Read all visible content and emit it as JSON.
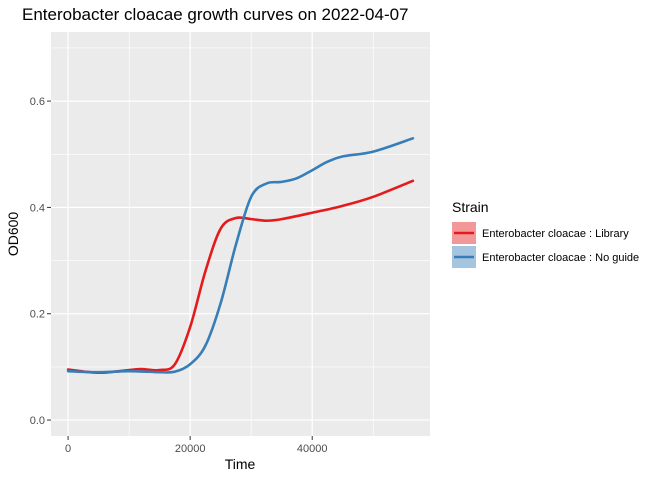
{
  "chart_data": {
    "type": "line",
    "title": "Enterobacter cloacae growth curves on 2022-04-07",
    "xlabel": "Time",
    "ylabel": "OD600",
    "xlim": [
      -2800,
      59300
    ],
    "ylim": [
      -0.03,
      0.73
    ],
    "x_ticks": [
      0,
      20000,
      40000
    ],
    "x_tick_labels": [
      "0",
      "20000",
      "40000"
    ],
    "y_ticks": [
      0.0,
      0.2,
      0.4,
      0.6
    ],
    "y_tick_labels": [
      "0.0",
      "0.2",
      "0.4",
      "0.6"
    ],
    "grid": true,
    "legend": {
      "title": "Strain",
      "placement": "right"
    },
    "series": [
      {
        "name": "Enterobacter cloacae : Library",
        "color": "#e41a1c",
        "points": [
          [
            0,
            0.095
          ],
          [
            5000,
            0.089
          ],
          [
            10000,
            0.094
          ],
          [
            12000,
            0.096
          ],
          [
            15000,
            0.094
          ],
          [
            17500,
            0.105
          ],
          [
            20000,
            0.175
          ],
          [
            22500,
            0.28
          ],
          [
            25000,
            0.36
          ],
          [
            27500,
            0.38
          ],
          [
            30000,
            0.378
          ],
          [
            32500,
            0.375
          ],
          [
            35000,
            0.378
          ],
          [
            40000,
            0.39
          ],
          [
            45000,
            0.403
          ],
          [
            50000,
            0.42
          ],
          [
            56500,
            0.45
          ]
        ]
      },
      {
        "name": "Enterobacter cloacae : No guide",
        "color": "#377eb8",
        "points": [
          [
            0,
            0.092
          ],
          [
            5000,
            0.09
          ],
          [
            10000,
            0.092
          ],
          [
            15000,
            0.09
          ],
          [
            17500,
            0.091
          ],
          [
            20000,
            0.105
          ],
          [
            22500,
            0.14
          ],
          [
            25000,
            0.22
          ],
          [
            27500,
            0.33
          ],
          [
            30000,
            0.42
          ],
          [
            32500,
            0.445
          ],
          [
            35000,
            0.448
          ],
          [
            37500,
            0.455
          ],
          [
            40000,
            0.47
          ],
          [
            42500,
            0.486
          ],
          [
            45000,
            0.496
          ],
          [
            50000,
            0.505
          ],
          [
            56500,
            0.53
          ]
        ]
      }
    ]
  }
}
